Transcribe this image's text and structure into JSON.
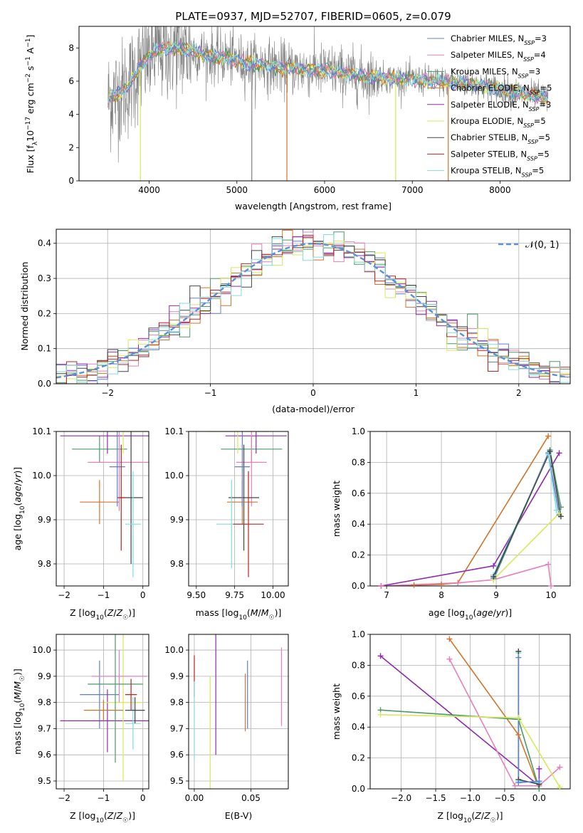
{
  "figure": {
    "title": "PLATE=0937, MJD=52707, FIBERID=0605, z=0.079"
  },
  "colors": {
    "chabrier_miles": "#5b7fd6",
    "salpeter_miles": "#e87fb8",
    "kroupa_miles": "#4a9a6a",
    "chabrier_elodie": "#d2742a",
    "salpeter_elodie": "#8e2aae",
    "kroupa_elodie": "#d7e85a",
    "chabrier_stelib": "#444444",
    "salpeter_stelib": "#c0201e",
    "kroupa_stelib": "#82dcdc",
    "grid": "#b0b0b0",
    "data": "#808080"
  },
  "chart_data": [
    {
      "id": "spectrum",
      "type": "line",
      "xlabel": "wavelength [Angstrom, rest frame]",
      "ylabel": "Flux [f_λ10^-17 erg cm^-2 s^-1 A^-1]",
      "xlim": [
        3200,
        8800
      ],
      "ylim": [
        0,
        9.3
      ],
      "xticks": [
        4000,
        5000,
        6000,
        7000,
        8000
      ],
      "yticks": [
        0,
        2,
        4,
        6,
        8
      ],
      "grid": false,
      "legend_position": "top-right",
      "legend": [
        {
          "label": "Chabrier MILES, N",
          "sub": "SSP",
          "tail": "=3",
          "color_key": "chabrier_miles"
        },
        {
          "label": "Salpeter MILES, N",
          "sub": "SSP",
          "tail": "=4",
          "color_key": "salpeter_miles"
        },
        {
          "label": "Kroupa MILES, N",
          "sub": "SSP",
          "tail": "=3",
          "color_key": "kroupa_miles"
        },
        {
          "label": "Chabrier ELODIE, N",
          "sub": "SSP",
          "tail": "=5",
          "color_key": "chabrier_elodie"
        },
        {
          "label": "Salpeter ELODIE, N",
          "sub": "SSP",
          "tail": "=3",
          "color_key": "salpeter_elodie"
        },
        {
          "label": "Kroupa ELODIE, N",
          "sub": "SSP",
          "tail": "=5",
          "color_key": "kroupa_elodie"
        },
        {
          "label": "Chabrier STELIB, N",
          "sub": "SSP",
          "tail": "=5",
          "color_key": "chabrier_stelib"
        },
        {
          "label": "Salpeter STELIB, N",
          "sub": "SSP",
          "tail": "=5",
          "color_key": "salpeter_stelib"
        },
        {
          "label": "Kroupa STELIB, N",
          "sub": "SSP",
          "tail": "=5",
          "color_key": "kroupa_stelib"
        }
      ],
      "continuum": [
        [
          3530,
          4.9
        ],
        [
          3650,
          5.3
        ],
        [
          3750,
          5.6
        ],
        [
          3850,
          6.5
        ],
        [
          3950,
          7.2
        ],
        [
          4050,
          7.7
        ],
        [
          4150,
          7.9
        ],
        [
          4300,
          8.0
        ],
        [
          4500,
          7.8
        ],
        [
          4700,
          7.5
        ],
        [
          4900,
          7.4
        ],
        [
          5100,
          7.1
        ],
        [
          5300,
          7.0
        ],
        [
          5500,
          6.8
        ],
        [
          5800,
          6.7
        ],
        [
          6100,
          6.6
        ],
        [
          6400,
          6.3
        ],
        [
          6700,
          6.2
        ],
        [
          7000,
          6.1
        ],
        [
          7300,
          6.0
        ],
        [
          7600,
          5.9
        ],
        [
          7900,
          5.6
        ],
        [
          8200,
          5.3
        ],
        [
          8500,
          5.0
        ]
      ],
      "dips": [
        {
          "x": 3900,
          "y": 0.0,
          "color_key": "kroupa_elodie"
        },
        {
          "x": 5170,
          "y": 0.0,
          "color_key": "data"
        },
        {
          "x": 5570,
          "y": 0.0,
          "color_key": "chabrier_elodie"
        },
        {
          "x": 6810,
          "y": 0.0,
          "color_key": "kroupa_elodie"
        },
        {
          "x": 7410,
          "y": 0.0,
          "color_key": "chabrier_elodie"
        }
      ]
    },
    {
      "id": "residuals",
      "type": "line",
      "xlabel": "(data-model)/error",
      "ylabel": "Normed distribution",
      "xlim": [
        -2.5,
        2.5
      ],
      "ylim": [
        0,
        0.44
      ],
      "xticks": [
        -2,
        -1,
        0,
        1,
        2
      ],
      "yticks": [
        0.0,
        0.1,
        0.2,
        0.3,
        0.4
      ],
      "grid": true,
      "legend_position": "top-right",
      "legend_label": "𝒩(0, 1)",
      "bin_width": 0.1,
      "gaussian": {
        "mean": 0,
        "sigma": 1
      }
    },
    {
      "id": "z_age",
      "type": "scatter",
      "xlabel": "Z [log10(Z/Z☉)]",
      "ylabel": "age  [log10(age/yr)]",
      "xlim": [
        -2.2,
        0.15
      ],
      "ylim": [
        9.75,
        10.1
      ],
      "xticks": [
        -2,
        -1,
        0
      ],
      "yticks": [
        9.8,
        9.9,
        10.0,
        10.1
      ],
      "grid": true,
      "points": [
        {
          "x": -1.1,
          "xerr": 0.7,
          "y": 10.06,
          "yerr": 0.03,
          "color_key": "kroupa_miles"
        },
        {
          "x": -0.9,
          "xerr": 1.2,
          "y": 10.09,
          "yerr": 0.04,
          "color_key": "salpeter_elodie"
        },
        {
          "x": -0.5,
          "xerr": 0.6,
          "y": 10.1,
          "yerr": 0.05,
          "color_key": "kroupa_elodie"
        },
        {
          "x": -0.6,
          "xerr": 0.8,
          "y": 10.03,
          "yerr": 0.11,
          "color_key": "salpeter_miles"
        },
        {
          "x": -0.3,
          "xerr": 0.3,
          "y": 9.95,
          "yerr": 0.15,
          "color_key": "chabrier_stelib"
        },
        {
          "x": -1.1,
          "xerr": 0.5,
          "y": 9.94,
          "yerr": 0.05,
          "color_key": "chabrier_elodie"
        },
        {
          "x": -0.25,
          "xerr": 0.2,
          "y": 9.89,
          "yerr": 0.12,
          "color_key": "kroupa_stelib"
        },
        {
          "x": -0.65,
          "xerr": 0.2,
          "y": 10.02,
          "yerr": 0.09,
          "color_key": "chabrier_miles"
        },
        {
          "x": -0.55,
          "xerr": 0.1,
          "y": 9.95,
          "yerr": 0.12,
          "color_key": "salpeter_stelib"
        }
      ]
    },
    {
      "id": "mass_age",
      "type": "scatter",
      "xlabel": "mass [log10(M/M☉)]",
      "ylabel": "",
      "xlim": [
        9.45,
        10.1
      ],
      "ylim": [
        9.75,
        10.1
      ],
      "xticks": [
        9.5,
        9.75,
        10.0
      ],
      "yticks": [
        9.8,
        9.9,
        10.0,
        10.1
      ],
      "grid": true,
      "points": [
        {
          "x": 9.86,
          "xerr": 0.2,
          "y": 10.06,
          "yerr": 0.03,
          "color_key": "kroupa_miles"
        },
        {
          "x": 9.89,
          "xerr": 0.2,
          "y": 10.09,
          "yerr": 0.04,
          "color_key": "salpeter_elodie"
        },
        {
          "x": 9.77,
          "xerr": 0.2,
          "y": 10.1,
          "yerr": 0.05,
          "color_key": "kroupa_elodie"
        },
        {
          "x": 9.86,
          "xerr": 0.1,
          "y": 10.03,
          "yerr": 0.1,
          "color_key": "salpeter_miles"
        },
        {
          "x": 9.81,
          "xerr": 0.1,
          "y": 9.95,
          "yerr": 0.12,
          "color_key": "chabrier_stelib"
        },
        {
          "x": 9.8,
          "xerr": 0.1,
          "y": 9.94,
          "yerr": 0.05,
          "color_key": "chabrier_elodie"
        },
        {
          "x": 9.73,
          "xerr": 0.1,
          "y": 9.89,
          "yerr": 0.1,
          "color_key": "kroupa_stelib"
        },
        {
          "x": 9.8,
          "xerr": 0.05,
          "y": 10.02,
          "yerr": 0.09,
          "color_key": "chabrier_miles"
        },
        {
          "x": 9.84,
          "xerr": 0.1,
          "y": 9.89,
          "yerr": 0.12,
          "color_key": "salpeter_stelib"
        }
      ]
    },
    {
      "id": "age_weight",
      "type": "line",
      "xlabel": "age  [log10(age/yr)]",
      "ylabel": "mass weight",
      "xlim": [
        6.7,
        10.35
      ],
      "ylim": [
        0,
        1.0
      ],
      "xticks": [
        7,
        8,
        9,
        10
      ],
      "yticks": [
        0.0,
        0.2,
        0.4,
        0.6,
        0.8,
        1.0
      ],
      "grid": true,
      "series": [
        {
          "color_key": "chabrier_elodie",
          "x": [
            6.9,
            7.5,
            8.0,
            8.3,
            9.95
          ],
          "y": [
            0.0,
            0.005,
            0.01,
            0.02,
            0.97
          ]
        },
        {
          "color_key": "salpeter_elodie",
          "x": [
            6.9,
            8.95,
            10.15
          ],
          "y": [
            0.0,
            0.13,
            0.86
          ]
        },
        {
          "color_key": "salpeter_miles",
          "x": [
            6.9,
            8.3,
            8.95,
            9.95,
            10.0
          ],
          "y": [
            0.0,
            0.02,
            0.04,
            0.14,
            0.0
          ]
        },
        {
          "color_key": "kroupa_miles",
          "x": [
            8.95,
            9.98,
            10.18
          ],
          "y": [
            0.04,
            0.88,
            0.51
          ]
        },
        {
          "color_key": "chabrier_miles",
          "x": [
            8.95,
            9.95,
            10.15
          ],
          "y": [
            0.05,
            0.86,
            0.46
          ]
        },
        {
          "color_key": "kroupa_elodie",
          "x": [
            8.95,
            10.15
          ],
          "y": [
            0.04,
            0.47
          ]
        },
        {
          "color_key": "kroupa_stelib",
          "x": [
            8.95,
            9.95,
            10.1
          ],
          "y": [
            0.07,
            0.85,
            0.49
          ]
        },
        {
          "color_key": "chabrier_stelib",
          "x": [
            8.95,
            9.98,
            10.18
          ],
          "y": [
            0.06,
            0.87,
            0.45
          ]
        }
      ]
    },
    {
      "id": "z_mass",
      "type": "scatter",
      "xlabel": "Z [log10(Z/Z☉)]",
      "ylabel": "mass [log10(M/M☉)]",
      "xlim": [
        -2.2,
        0.15
      ],
      "ylim": [
        9.47,
        10.06
      ],
      "xticks": [
        -2,
        -1,
        0
      ],
      "yticks": [
        9.5,
        9.6,
        9.7,
        9.8,
        9.9,
        10.0
      ],
      "grid": true,
      "points": [
        {
          "x": -1.1,
          "xerr": 0.5,
          "y": 9.83,
          "yerr": 0.13,
          "color_key": "chabrier_miles"
        },
        {
          "x": -0.9,
          "xerr": 1.2,
          "y": 9.73,
          "yerr": 0.12,
          "color_key": "salpeter_elodie"
        },
        {
          "x": -0.5,
          "xerr": 0.5,
          "y": 9.8,
          "yerr": 0.3,
          "color_key": "kroupa_elodie"
        },
        {
          "x": -0.6,
          "xerr": 0.7,
          "y": 9.9,
          "yerr": 0.1,
          "color_key": "salpeter_miles"
        },
        {
          "x": -0.7,
          "xerr": 0.7,
          "y": 9.87,
          "yerr": 0.3,
          "color_key": "kroupa_miles"
        },
        {
          "x": -1.0,
          "xerr": 0.5,
          "y": 9.77,
          "yerr": 0.04,
          "color_key": "chabrier_elodie"
        },
        {
          "x": -0.25,
          "xerr": 0.2,
          "y": 9.72,
          "yerr": 0.1,
          "color_key": "kroupa_stelib"
        },
        {
          "x": -0.3,
          "xerr": 0.15,
          "y": 9.83,
          "yerr": 0.06,
          "color_key": "salpeter_stelib"
        },
        {
          "x": -0.2,
          "xerr": 0.25,
          "y": 9.77,
          "yerr": 0.05,
          "color_key": "chabrier_stelib"
        }
      ]
    },
    {
      "id": "ebv_mass",
      "type": "scatter",
      "xlabel": "E(B-V)",
      "ylabel": "",
      "xlim": [
        -0.005,
        0.083
      ],
      "ylim": [
        9.47,
        10.06
      ],
      "xticks": [
        0.0,
        0.05
      ],
      "yticks": [
        9.5,
        9.6,
        9.7,
        9.8,
        9.9,
        10.0
      ],
      "grid": true,
      "points": [
        {
          "x": 0.0,
          "y": 9.9,
          "yerr": 0.08,
          "color_key": "salpeter_stelib"
        },
        {
          "x": 0.0,
          "y": 9.73,
          "yerr": 0.15,
          "color_key": "kroupa_stelib"
        },
        {
          "x": 0.014,
          "y": 9.65,
          "yerr": 0.25,
          "color_key": "kroupa_elodie"
        },
        {
          "x": 0.019,
          "y": 9.83,
          "yerr": 0.23,
          "color_key": "salpeter_elodie"
        },
        {
          "x": 0.045,
          "y": 9.8,
          "yerr": 0.11,
          "color_key": "chabrier_elodie"
        },
        {
          "x": 0.047,
          "y": 9.83,
          "yerr": 0.13,
          "color_key": "chabrier_miles"
        },
        {
          "x": 0.077,
          "y": 9.86,
          "yerr": 0.15,
          "color_key": "salpeter_miles"
        }
      ]
    },
    {
      "id": "z_weight",
      "type": "line",
      "xlabel": "Z [log10(Z/Z☉)]",
      "ylabel": "mass weight",
      "xlim": [
        -2.45,
        0.45
      ],
      "ylim": [
        0,
        1.0
      ],
      "xticks": [
        -2.0,
        -1.5,
        -1.0,
        -0.5,
        0.0
      ],
      "yticks": [
        0.0,
        0.2,
        0.4,
        0.6,
        0.8,
        1.0
      ],
      "grid": true,
      "series": [
        {
          "color_key": "chabrier_elodie",
          "x": [
            -1.3,
            -0.3,
            0.0
          ],
          "y": [
            0.97,
            0.35,
            0.0
          ]
        },
        {
          "color_key": "salpeter_elodie",
          "x": [
            -2.3,
            -0.0,
            0.0
          ],
          "y": [
            0.86,
            0.02,
            0.13
          ]
        },
        {
          "color_key": "salpeter_miles",
          "x": [
            -1.3,
            -0.35,
            0.0,
            0.3
          ],
          "y": [
            0.84,
            0.02,
            0.02,
            0.14
          ]
        },
        {
          "color_key": "kroupa_miles",
          "x": [
            -2.3,
            -0.3,
            0.0
          ],
          "y": [
            0.51,
            0.45,
            0.0
          ]
        },
        {
          "color_key": "kroupa_elodie",
          "x": [
            -2.3,
            -0.3,
            0.3
          ],
          "y": [
            0.48,
            0.46,
            0.01
          ]
        },
        {
          "color_key": "kroupa_stelib",
          "x": [
            -0.3,
            -0.3,
            0.0
          ],
          "y": [
            0.88,
            0.05,
            0.04
          ]
        },
        {
          "color_key": "chabrier_stelib",
          "x": [
            -0.3,
            -0.3,
            0.0
          ],
          "y": [
            0.89,
            0.06,
            0.03
          ]
        },
        {
          "color_key": "chabrier_miles",
          "x": [
            -0.3,
            -0.3,
            0.0
          ],
          "y": [
            0.85,
            0.04,
            0.05
          ]
        }
      ]
    }
  ]
}
